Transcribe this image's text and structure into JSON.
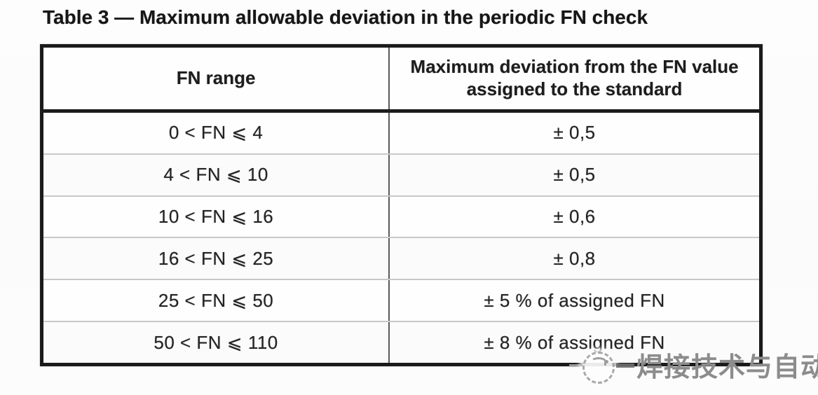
{
  "title": "Table 3 — Maximum allowable deviation in the periodic FN check",
  "table": {
    "columns": [
      "FN range",
      "Maximum deviation from the FN value assigned to the standard"
    ],
    "rows": [
      {
        "range": "0 < FN ⩽ 4",
        "deviation": "± 0,5"
      },
      {
        "range": "4 < FN ⩽ 10",
        "deviation": "± 0,5"
      },
      {
        "range": "10 < FN ⩽ 16",
        "deviation": "± 0,6"
      },
      {
        "range": "16 < FN ⩽ 25",
        "deviation": "± 0,8"
      },
      {
        "range": "25 < FN ⩽ 50",
        "deviation": "± 5 % of assigned FN"
      },
      {
        "range": "50 < FN ⩽ 110",
        "deviation": "± 8 % of assigned FN"
      }
    ]
  },
  "watermark": {
    "text": "焊接技术与自动化",
    "icon": "dashed-circle-logo",
    "color": "#8c8c8c"
  },
  "colors": {
    "background": "#fcfcfc",
    "table_border": "#1b1b1b",
    "row_divider": "#c8c8c8",
    "column_divider": "#5a5a5a",
    "text": "#232323",
    "watermark_gray": "#8c8c8c"
  }
}
